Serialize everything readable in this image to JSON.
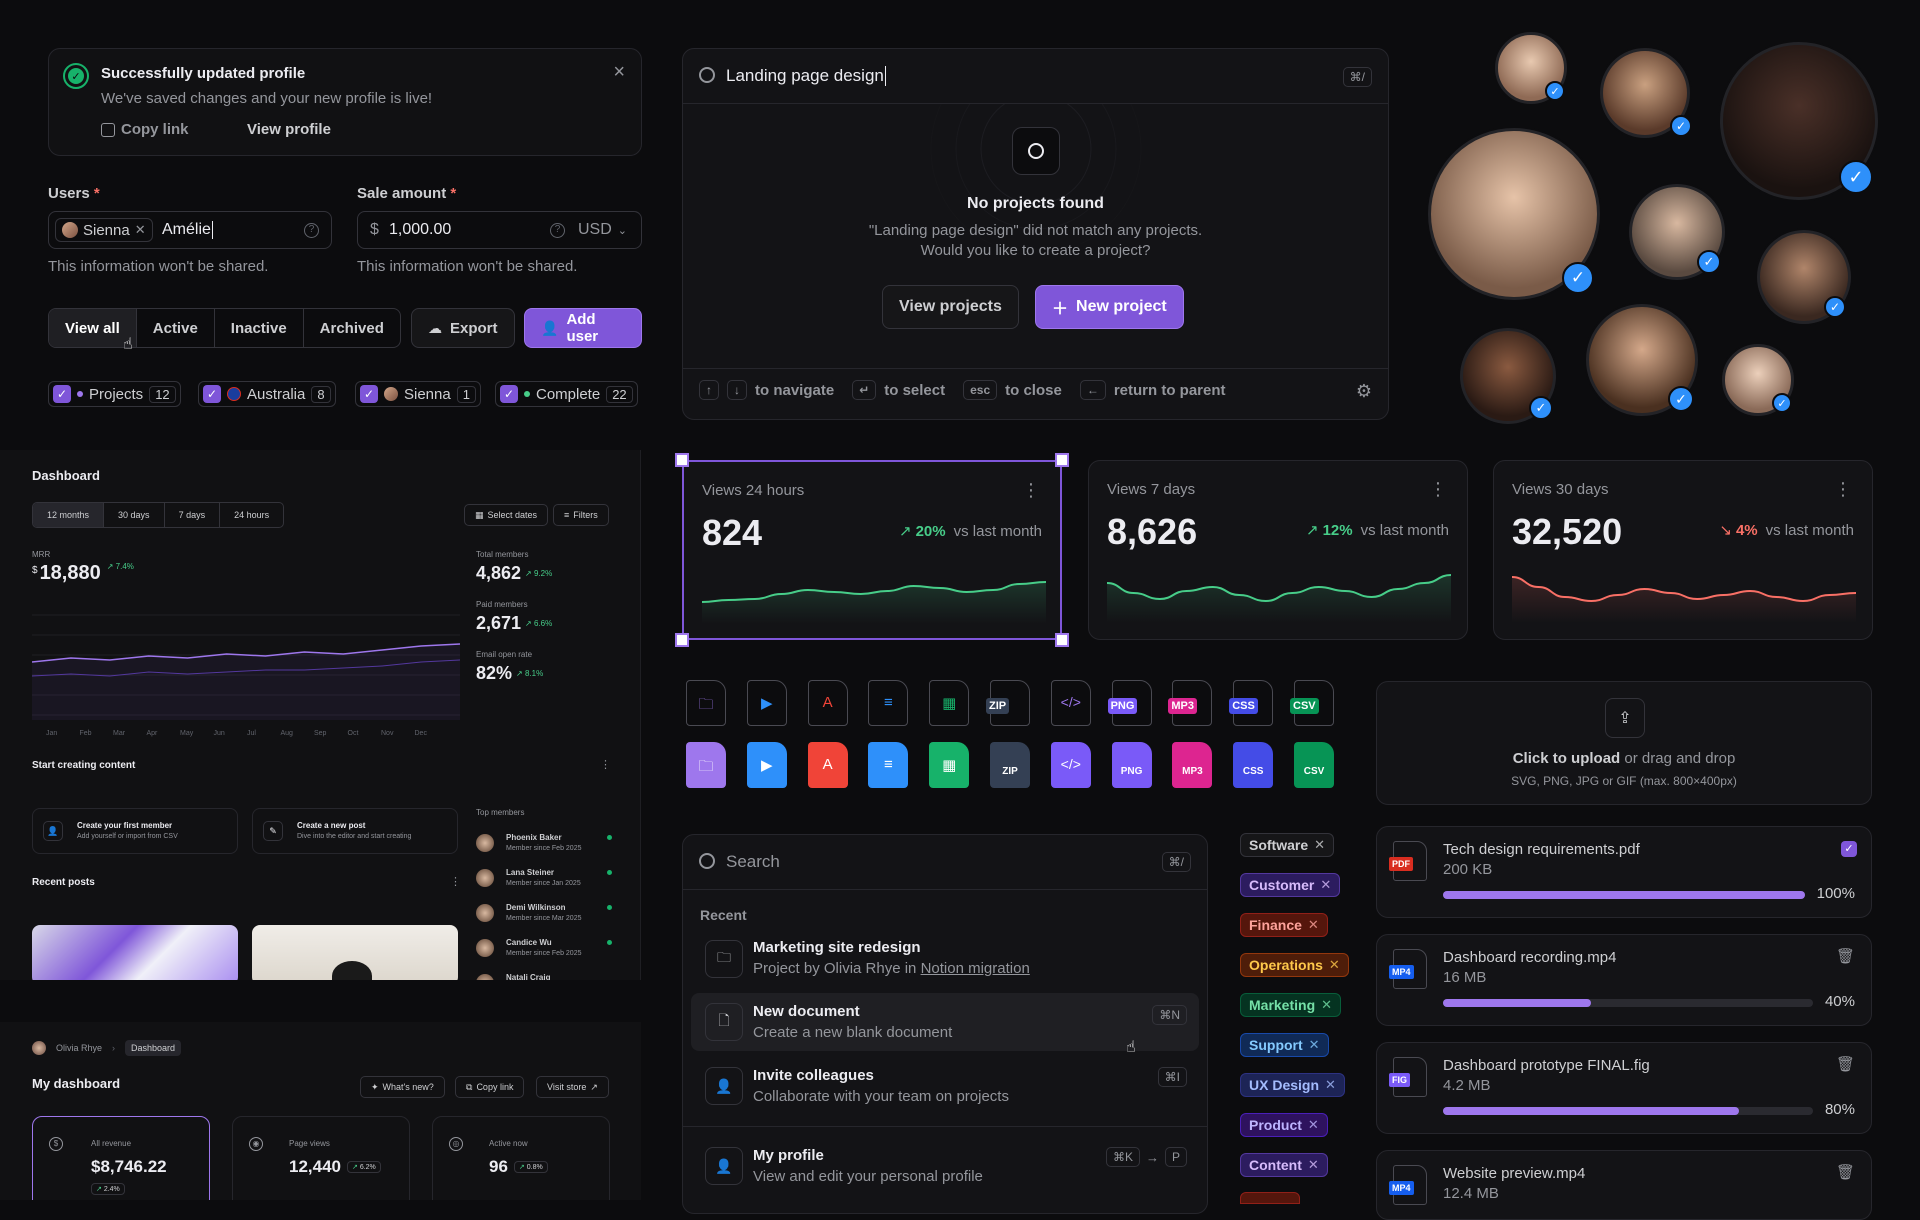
{
  "toast": {
    "title": "Successfully updated profile",
    "body": "We've saved changes and your new profile is live!",
    "copy_link": "Copy link",
    "view_profile": "View profile"
  },
  "users_field": {
    "label": "Users",
    "required": "*",
    "chip": "Sienna",
    "value": "Amélie",
    "hint": "This information won't be shared."
  },
  "sale_field": {
    "label": "Sale amount",
    "required": "*",
    "prefix": "$",
    "value": "1,000.00",
    "currency": "USD",
    "hint": "This information won't be shared."
  },
  "filter_tabs": [
    "View all",
    "Active",
    "Inactive",
    "Archived"
  ],
  "export_label": "Export",
  "add_user_label": "Add user",
  "filter_chips": [
    {
      "label": "Projects",
      "count": "12"
    },
    {
      "label": "Australia",
      "count": "8"
    },
    {
      "label": "Sienna",
      "count": "1"
    },
    {
      "label": "Complete",
      "count": "22"
    }
  ],
  "command_search": {
    "query": "Landing page design",
    "shortcut": "⌘/",
    "empty_title": "No projects found",
    "empty_body_1": "\"Landing page design\" did not match any projects.",
    "empty_body_2": "Would you like to create a project?",
    "view_projects": "View projects",
    "new_project": "New project",
    "hint_navigate": "to navigate",
    "hint_select": "to select",
    "hint_esc": "esc",
    "hint_close": "to close",
    "hint_parent": "return to parent"
  },
  "metrics": [
    {
      "title": "Views 24 hours",
      "value": "824",
      "change": "20%",
      "compare": "vs last month",
      "trend": "up",
      "color": "#47cd89"
    },
    {
      "title": "Views 7 days",
      "value": "8,626",
      "change": "12%",
      "compare": "vs last month",
      "trend": "up",
      "color": "#47cd89"
    },
    {
      "title": "Views 30 days",
      "value": "32,520",
      "change": "4%",
      "compare": "vs last month",
      "trend": "down",
      "color": "#f97066"
    }
  ],
  "file_types": [
    "ZIP",
    "PNG",
    "MP3",
    "CSS",
    "CSV",
    "ZIP",
    "PNG",
    "MP3",
    "CSS",
    "CSV"
  ],
  "upload": {
    "click": "Click to upload",
    "rest": " or drag and drop",
    "formats": "SVG, PNG, JPG or GIF (max. 800×400px)"
  },
  "search_menu": {
    "placeholder": "Search",
    "shortcut": "⌘/",
    "section": "Recent",
    "items": [
      {
        "title": "Marketing site redesign",
        "sub_prefix": "Project by Olivia Rhye in ",
        "sub_link": "Notion migration",
        "kbd": ""
      },
      {
        "title": "New document",
        "sub": "Create a new blank document",
        "kbd": "⌘N"
      },
      {
        "title": "Invite colleagues",
        "sub": "Collaborate with your team on projects",
        "kbd": "⌘I"
      },
      {
        "title": "My profile",
        "sub": "View and edit your personal profile",
        "kbd": "⌘K",
        "kbd2": "P"
      }
    ]
  },
  "tags": [
    {
      "label": "Software",
      "bg": "#161618",
      "border": "#33333a",
      "color": "#cecfd2"
    },
    {
      "label": "Customer",
      "bg": "#2c1c5f",
      "border": "#53389e",
      "color": "#d6bbfb"
    },
    {
      "label": "Finance",
      "bg": "#55160c",
      "border": "#912018",
      "color": "#fda29b"
    },
    {
      "label": "Operations",
      "bg": "#4e1d09",
      "border": "#93370d",
      "color": "#fec84b"
    },
    {
      "label": "Marketing",
      "bg": "#053321",
      "border": "#085d3a",
      "color": "#75e0a7"
    },
    {
      "label": "Support",
      "bg": "#102a56",
      "border": "#1849a9",
      "color": "#84caff"
    },
    {
      "label": "UX Design",
      "bg": "#1d2456",
      "border": "#2d3282",
      "color": "#a4bcfd"
    },
    {
      "label": "Product",
      "bg": "#2e125e",
      "border": "#4a1fb8",
      "color": "#bdb4fe"
    },
    {
      "label": "Content",
      "bg": "#2c1c5f",
      "border": "#53389e",
      "color": "#d6bbfb"
    }
  ],
  "files": [
    {
      "name": "Tech design requirements.pdf",
      "size": "200 KB",
      "percent": "100%",
      "progress": 1.0,
      "badge": "PDF",
      "badge_color": "#d92d20"
    },
    {
      "name": "Dashboard recording.mp4",
      "size": "16 MB",
      "percent": "40%",
      "progress": 0.4,
      "badge": "MP4",
      "badge_color": "#155eef"
    },
    {
      "name": "Dashboard prototype FINAL.fig",
      "size": "4.2 MB",
      "percent": "80%",
      "progress": 0.8,
      "badge": "FIG",
      "badge_color": "#7a5af8"
    },
    {
      "name": "Website preview.mp4",
      "size": "12.4 MB",
      "badge": "MP4",
      "badge_color": "#155eef"
    }
  ],
  "dashboard": {
    "title": "Dashboard",
    "ranges": [
      "12 months",
      "30 days",
      "7 days",
      "24 hours"
    ],
    "select_dates": "Select dates",
    "filters": "Filters",
    "mrr_label": "MRR",
    "mrr_currency": "$",
    "mrr_value": "18,880",
    "mrr_change": "7.4%",
    "stats": [
      {
        "label": "Total members",
        "value": "4,862",
        "change": "9.2%"
      },
      {
        "label": "Paid members",
        "value": "2,671",
        "change": "6.6%"
      },
      {
        "label": "Email open rate",
        "value": "82%",
        "change": "8.1%"
      }
    ],
    "months": [
      "Jan",
      "Feb",
      "Mar",
      "Apr",
      "May",
      "Jun",
      "Jul",
      "Aug",
      "Sep",
      "Oct",
      "Nov",
      "Dec"
    ],
    "start_title": "Start creating content",
    "actions": [
      {
        "title": "Create your first member",
        "sub": "Add yourself or import from CSV"
      },
      {
        "title": "Create a new post",
        "sub": "Dive into the editor and start creating"
      }
    ],
    "recent_posts": "Recent posts",
    "top_members_title": "Top members",
    "members": [
      {
        "name": "Phoenix Baker",
        "since": "Member since Feb 2025"
      },
      {
        "name": "Lana Steiner",
        "since": "Member since Jan 2025"
      },
      {
        "name": "Demi Wilkinson",
        "since": "Member since Mar 2025"
      },
      {
        "name": "Candice Wu",
        "since": "Member since Feb 2025"
      },
      {
        "name": "Natali Craig",
        "since": ""
      }
    ]
  },
  "my_dashboard": {
    "crumb_user": "Olivia Rhye",
    "crumb_page": "Dashboard",
    "title": "My dashboard",
    "whats_new": "What's new?",
    "copy_link": "Copy link",
    "visit_store": "Visit store",
    "kpis": [
      {
        "label": "All revenue",
        "value": "$8,746.22",
        "change": "2.4%"
      },
      {
        "label": "Page views",
        "value": "12,440",
        "change": "6.2%"
      },
      {
        "label": "Active now",
        "value": "96",
        "change": "0.8%"
      }
    ]
  },
  "colors": {
    "accent": "#7f56d9",
    "success": "#47cd89",
    "error": "#f97066",
    "verified": "#2e90fa"
  }
}
